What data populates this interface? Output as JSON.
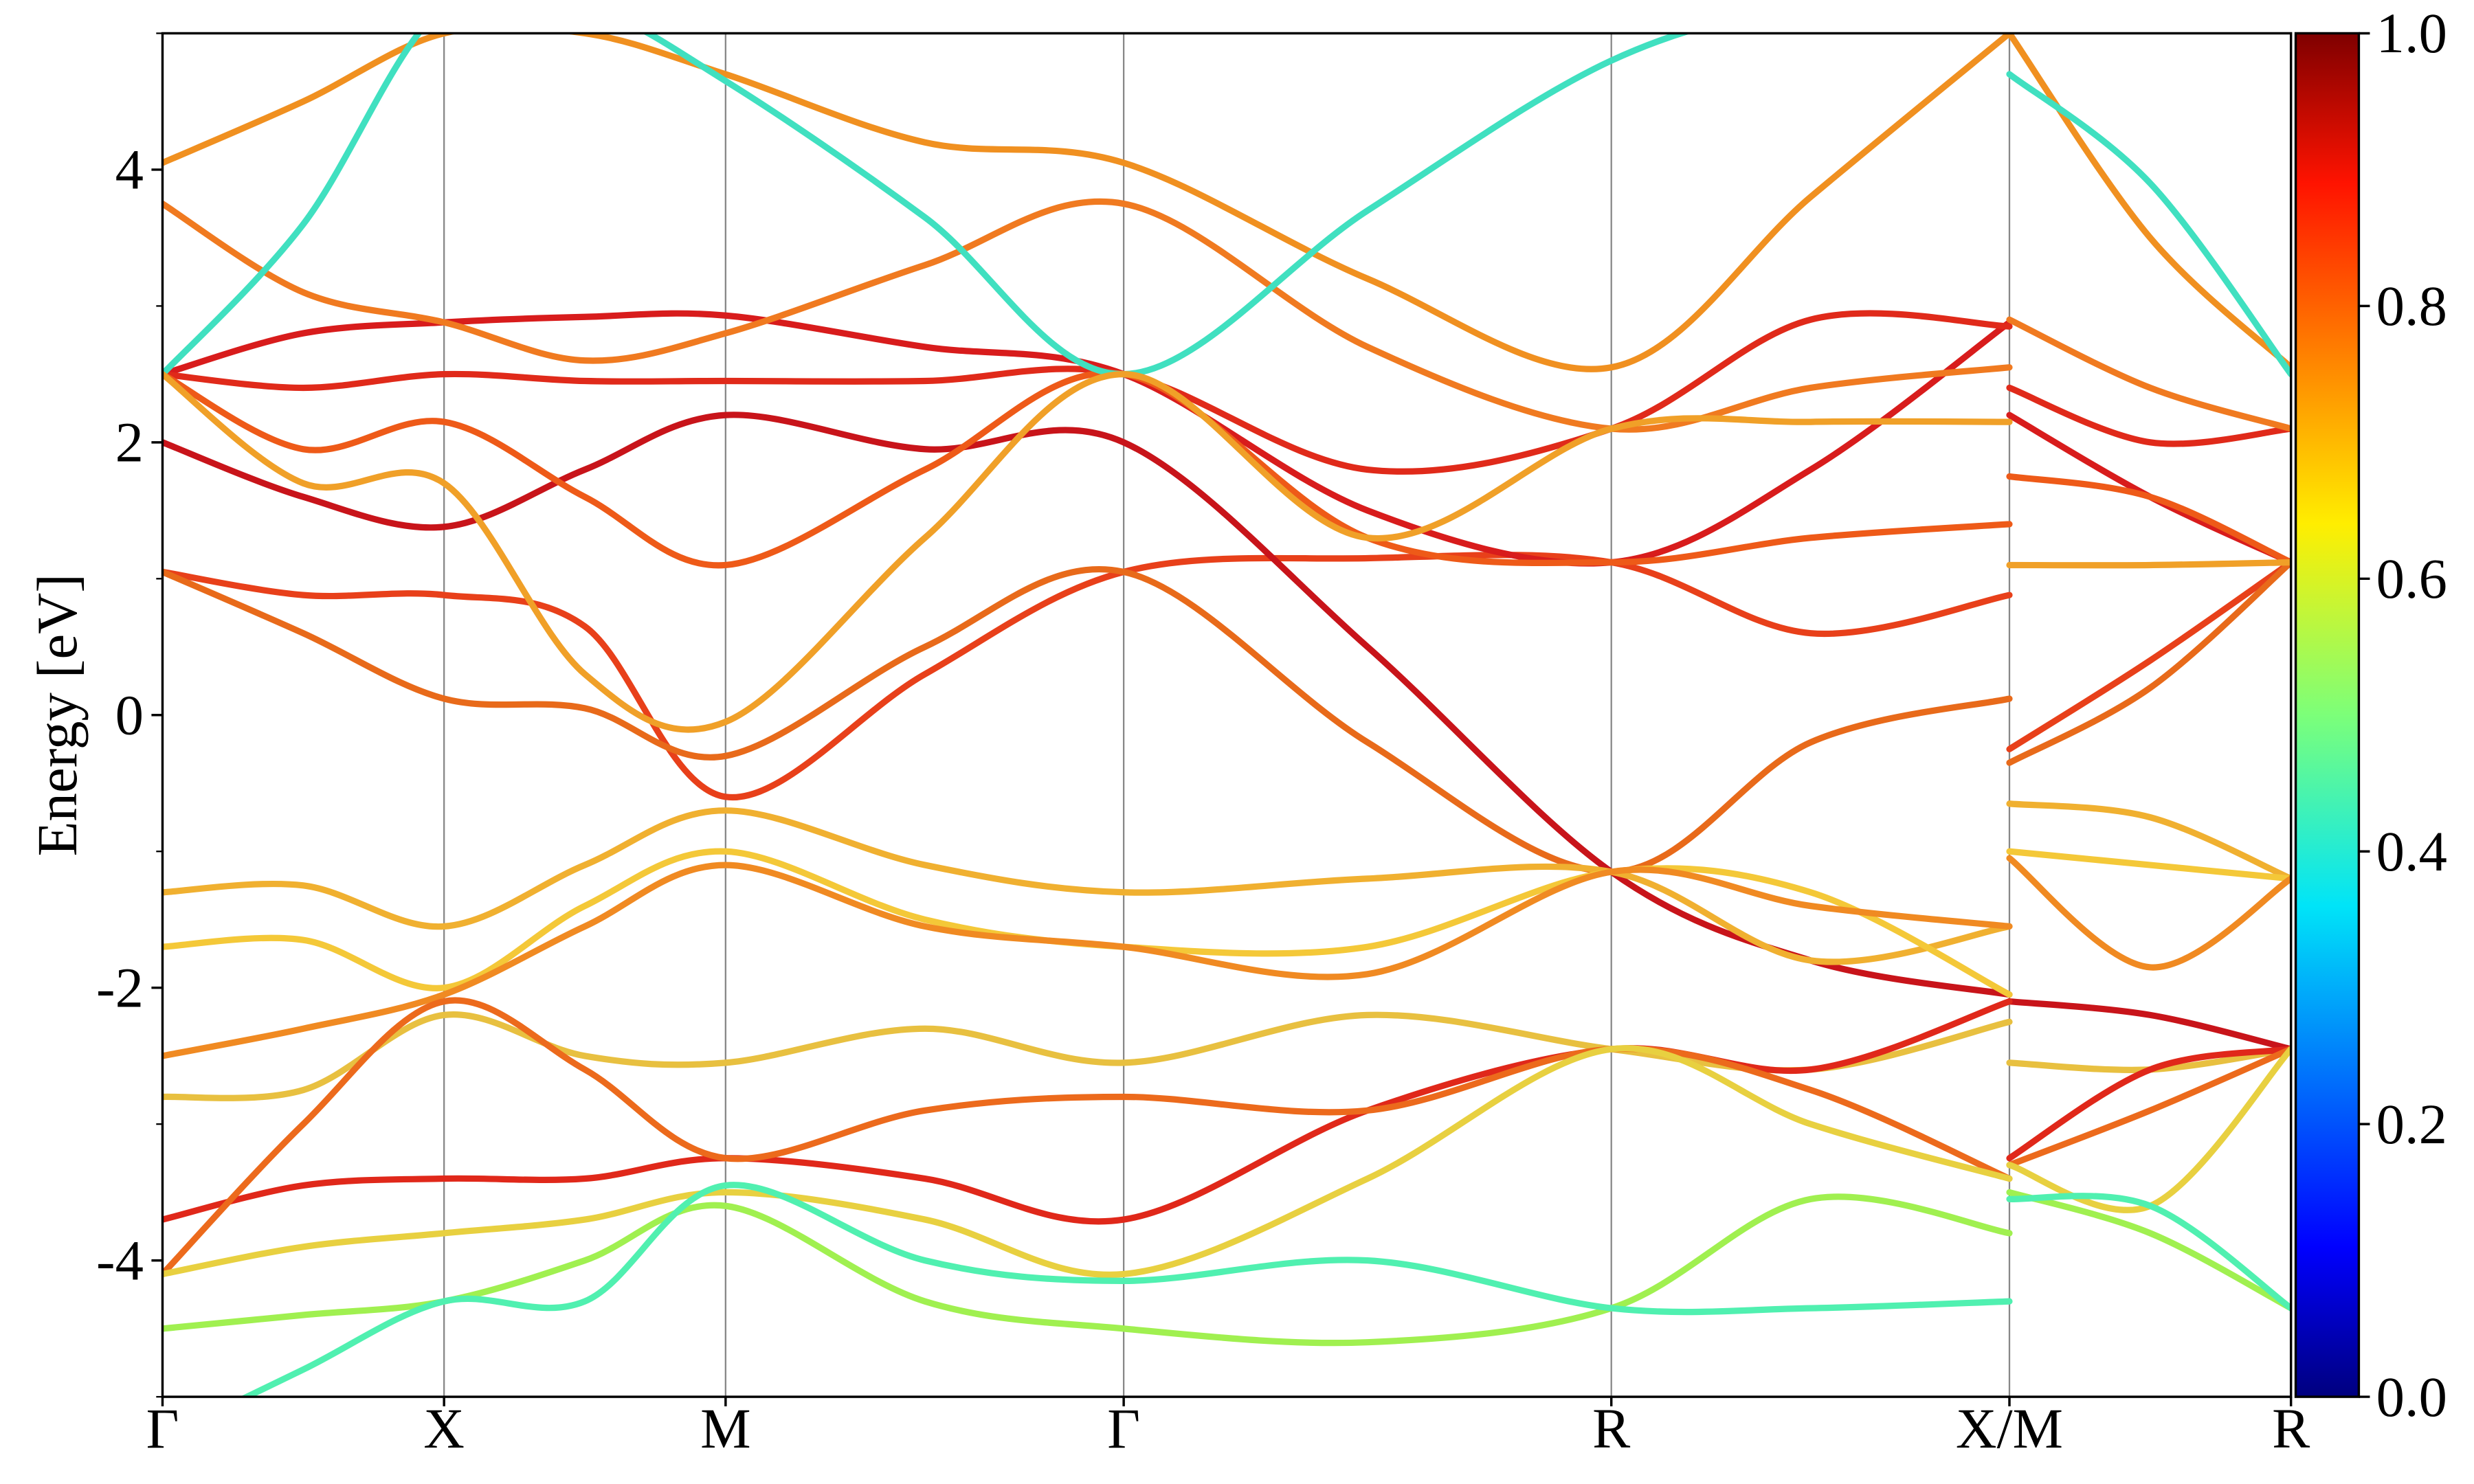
{
  "chart_data": {
    "type": "line",
    "y_label": "Energy [eV]",
    "x": [
      0,
      0.25,
      0.5,
      0.75,
      1.0,
      1.354,
      1.707,
      2.14,
      2.573,
      2.927,
      3.28,
      3.28,
      3.28,
      3.53,
      3.78
    ],
    "xlim": [
      0,
      3.78
    ],
    "xticks": [
      {
        "value": 0,
        "label": "Γ"
      },
      {
        "value": 0.5,
        "label": "X"
      },
      {
        "value": 1.0,
        "label": "M"
      },
      {
        "value": 1.707,
        "label": "Γ"
      },
      {
        "value": 2.573,
        "label": "R"
      },
      {
        "value": 3.28,
        "label": "X/M"
      },
      {
        "value": 3.78,
        "label": "R"
      }
    ],
    "ylim": [
      -5,
      5
    ],
    "yticks": [
      -4,
      -2,
      0,
      2,
      4
    ],
    "yminorticks": [
      -5,
      -3,
      -1,
      1,
      3,
      5
    ],
    "grid": true,
    "colorbar": {
      "lim": [
        0,
        1
      ],
      "ticks": [
        {
          "value": 0,
          "label": "0.0"
        },
        0.2,
        0.4,
        0.6,
        0.8,
        {
          "value": 1,
          "label": "1.0"
        }
      ]
    },
    "series": [
      {
        "color": "#e8401a",
        "values": [
          1.05,
          0.88,
          0.88,
          0.65,
          -0.6,
          0.3,
          1.05,
          1.15,
          1.12,
          0.6,
          0.88,
          null,
          -0.25,
          0.4,
          1.12
        ]
      },
      {
        "color": "#e86a1a",
        "values": [
          1.05,
          0.6,
          0.12,
          0.05,
          -0.3,
          0.5,
          1.05,
          -0.2,
          -1.15,
          -0.2,
          0.12,
          null,
          -0.35,
          0.2,
          1.12
        ]
      },
      {
        "color": "#c8141a",
        "values": [
          2.0,
          1.6,
          1.38,
          1.8,
          2.2,
          1.95,
          2.0,
          0.5,
          -1.15,
          -1.8,
          -2.05,
          null,
          -2.1,
          -2.2,
          -2.45
        ]
      },
      {
        "color": "#d81c1c",
        "values": [
          2.5,
          2.8,
          2.88,
          2.92,
          2.93,
          2.7,
          2.5,
          1.5,
          1.12,
          1.8,
          2.88,
          null,
          2.2,
          1.6,
          1.12
        ]
      },
      {
        "color": "#e02a1a",
        "values": [
          2.5,
          2.4,
          2.5,
          2.45,
          2.45,
          2.45,
          2.5,
          1.8,
          2.1,
          2.9,
          2.85,
          null,
          2.4,
          2.0,
          2.1
        ]
      },
      {
        "color": "#ee5a18",
        "values": [
          2.5,
          1.95,
          2.15,
          1.6,
          1.1,
          1.8,
          2.5,
          1.3,
          1.12,
          1.3,
          1.4,
          null,
          1.75,
          1.6,
          1.12
        ]
      },
      {
        "color": "#f07a20",
        "values": [
          3.75,
          3.1,
          2.88,
          2.6,
          2.8,
          3.3,
          3.75,
          2.7,
          2.1,
          2.4,
          2.55,
          null,
          2.9,
          2.4,
          2.1
        ]
      },
      {
        "color": "#f09020",
        "values": [
          4.05,
          4.5,
          5.0,
          5.0,
          4.7,
          4.2,
          4.05,
          3.2,
          2.55,
          3.8,
          5.0,
          null,
          5.0,
          3.5,
          2.55
        ]
      },
      {
        "color": "#40e0c0",
        "values": [
          2.5,
          3.6,
          5.2,
          5.2,
          4.65,
          3.65,
          2.5,
          3.7,
          4.8,
          5.2,
          5.2,
          null,
          4.7,
          3.9,
          2.5
        ]
      },
      {
        "color": "#f0a028",
        "values": [
          2.5,
          1.7,
          1.7,
          0.3,
          -0.05,
          1.3,
          2.5,
          1.3,
          2.1,
          2.15,
          2.15,
          null,
          1.1,
          1.1,
          1.12
        ]
      },
      {
        "color": "#f0b030",
        "values": [
          -1.3,
          -1.25,
          -1.55,
          -1.1,
          -0.7,
          -1.1,
          -1.3,
          -1.2,
          -1.15,
          -1.8,
          -1.55,
          null,
          -0.65,
          -0.75,
          -1.2
        ]
      },
      {
        "color": "#f4c838",
        "values": [
          -1.7,
          -1.65,
          -2.0,
          -1.4,
          -1.0,
          -1.5,
          -1.7,
          -1.7,
          -1.15,
          -1.3,
          -2.05,
          null,
          -1.0,
          -1.1,
          -1.2
        ]
      },
      {
        "color": "#f08a22",
        "values": [
          -2.5,
          -2.3,
          -2.05,
          -1.55,
          -1.1,
          -1.55,
          -1.7,
          -1.9,
          -1.15,
          -1.4,
          -1.55,
          null,
          -1.05,
          -1.85,
          -1.2
        ]
      },
      {
        "color": "#e8c040",
        "values": [
          -2.8,
          -2.75,
          -2.2,
          -2.5,
          -2.55,
          -2.3,
          -2.55,
          -2.2,
          -2.45,
          -2.6,
          -2.25,
          null,
          -2.55,
          -2.6,
          -2.45
        ]
      },
      {
        "color": "#e0281a",
        "values": [
          -3.7,
          -3.45,
          -3.4,
          -3.4,
          -3.25,
          -3.4,
          -3.7,
          -2.9,
          -2.45,
          -2.6,
          -2.1,
          null,
          -3.25,
          -2.6,
          -2.45
        ]
      },
      {
        "color": "#ec6a1c",
        "values": [
          -4.1,
          -3.0,
          -2.1,
          -2.6,
          -3.25,
          -2.9,
          -2.8,
          -2.9,
          -2.45,
          -2.75,
          -3.4,
          null,
          -3.3,
          -2.9,
          -2.45
        ]
      },
      {
        "color": "#e8d040",
        "values": [
          -4.1,
          -3.9,
          -3.8,
          -3.7,
          -3.5,
          -3.7,
          -4.1,
          -3.4,
          -2.45,
          -3.0,
          -3.4,
          null,
          -3.3,
          -3.6,
          -2.45
        ]
      },
      {
        "color": "#a0f050",
        "values": [
          -4.5,
          -4.4,
          -4.3,
          -4.0,
          -3.6,
          -4.3,
          -4.5,
          -4.6,
          -4.35,
          -3.55,
          -3.8,
          null,
          -3.5,
          -3.8,
          -4.35
        ]
      },
      {
        "color": "#50f0b0",
        "values": [
          -5.3,
          -4.8,
          -4.3,
          -4.3,
          -3.45,
          -4.0,
          -4.15,
          -4.0,
          -4.35,
          -4.35,
          -4.3,
          null,
          -3.55,
          -3.6,
          -4.35
        ]
      }
    ]
  }
}
